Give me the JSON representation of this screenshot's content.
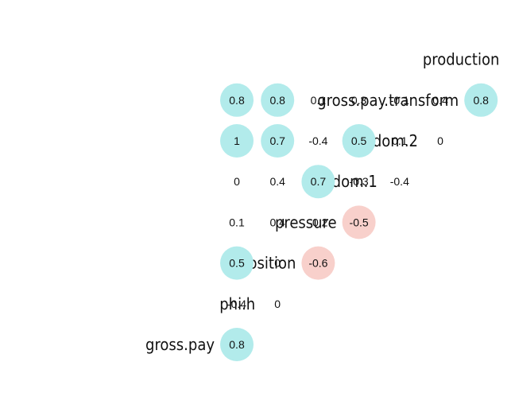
{
  "chart_data": {
    "type": "heatmap",
    "variables": [
      "gross.pay",
      "phi.h",
      "position",
      "pressure",
      "random.1",
      "random.2",
      "gross.pay.transform",
      "production"
    ],
    "cells": [
      {
        "row": "phi.h",
        "col": "gross.pay",
        "value": 0.8,
        "label": "0.8"
      },
      {
        "row": "position",
        "col": "gross.pay",
        "value": -0.4,
        "label": "-0.4"
      },
      {
        "row": "position",
        "col": "phi.h",
        "value": 0,
        "label": "0"
      },
      {
        "row": "pressure",
        "col": "gross.pay",
        "value": 0.5,
        "label": "0.5"
      },
      {
        "row": "pressure",
        "col": "phi.h",
        "value": 0,
        "label": "0"
      },
      {
        "row": "pressure",
        "col": "position",
        "value": -0.6,
        "label": "-0.6"
      },
      {
        "row": "random.1",
        "col": "gross.pay",
        "value": 0.1,
        "label": "0.1"
      },
      {
        "row": "random.1",
        "col": "phi.h",
        "value": 0.4,
        "label": "0.4"
      },
      {
        "row": "random.1",
        "col": "position",
        "value": -0.2,
        "label": "-0.2"
      },
      {
        "row": "random.1",
        "col": "pressure",
        "value": -0.5,
        "label": "-0.5"
      },
      {
        "row": "random.2",
        "col": "gross.pay",
        "value": 0,
        "label": "0"
      },
      {
        "row": "random.2",
        "col": "phi.h",
        "value": 0.4,
        "label": "0.4"
      },
      {
        "row": "random.2",
        "col": "position",
        "value": 0.7,
        "label": "0.7"
      },
      {
        "row": "random.2",
        "col": "pressure",
        "value": -0.3,
        "label": "-0.3"
      },
      {
        "row": "random.2",
        "col": "random.1",
        "value": -0.4,
        "label": "-0.4"
      },
      {
        "row": "gross.pay.transform",
        "col": "gross.pay",
        "value": 1,
        "label": "1"
      },
      {
        "row": "gross.pay.transform",
        "col": "phi.h",
        "value": 0.7,
        "label": "0.7"
      },
      {
        "row": "gross.pay.transform",
        "col": "position",
        "value": -0.4,
        "label": "-0.4"
      },
      {
        "row": "gross.pay.transform",
        "col": "pressure",
        "value": 0.5,
        "label": "0.5"
      },
      {
        "row": "gross.pay.transform",
        "col": "random.1",
        "value": 0.1,
        "label": "0.1"
      },
      {
        "row": "gross.pay.transform",
        "col": "random.2",
        "value": 0,
        "label": "0"
      },
      {
        "row": "production",
        "col": "gross.pay",
        "value": 0.8,
        "label": "0.8"
      },
      {
        "row": "production",
        "col": "phi.h",
        "value": 0.8,
        "label": "0.8"
      },
      {
        "row": "production",
        "col": "position",
        "value": 0.1,
        "label": "0.1"
      },
      {
        "row": "production",
        "col": "pressure",
        "value": 0.3,
        "label": "0.3"
      },
      {
        "row": "production",
        "col": "random.1",
        "value": -0.1,
        "label": "-0.1"
      },
      {
        "row": "production",
        "col": "random.2",
        "value": 0.4,
        "label": "0.4"
      },
      {
        "row": "production",
        "col": "gross.pay.transform",
        "value": 0.8,
        "label": "0.8"
      }
    ],
    "highlight_threshold": 0.5,
    "colors": {
      "positive": "#b2ebeb",
      "negative": "#f8d0cb",
      "text": "#111111"
    }
  }
}
